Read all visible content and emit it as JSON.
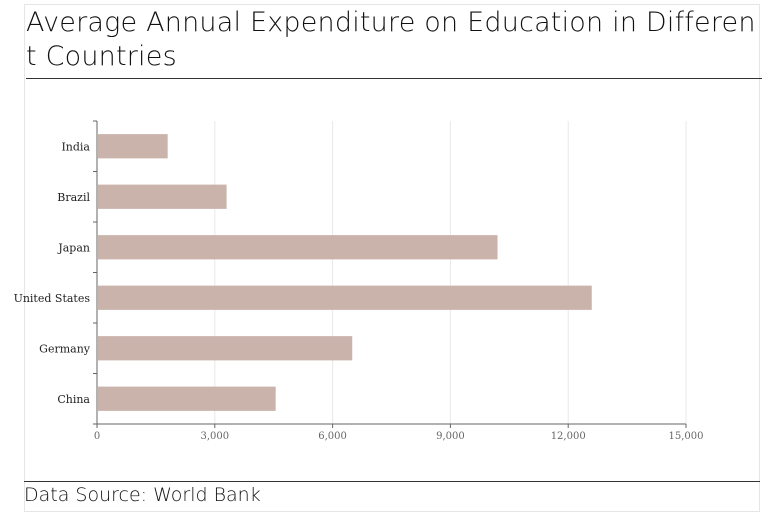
{
  "title": "Average Annual Expenditure on Education in Different Countries",
  "source": "Data Source: World Bank",
  "chart_data": {
    "type": "bar",
    "orientation": "horizontal",
    "categories": [
      "India",
      "Brazil",
      "Japan",
      "United States",
      "Germany",
      "China"
    ],
    "values": [
      1800,
      3300,
      10200,
      12600,
      6500,
      4550
    ],
    "xlim": [
      0,
      15000
    ],
    "xticks": [
      0,
      3000,
      6000,
      9000,
      12000,
      15000
    ],
    "xtick_labels": [
      "0",
      "3,000",
      "6,000",
      "9,000",
      "12,000",
      "15,000"
    ],
    "xlabel": "",
    "ylabel": "",
    "grid": "vertical",
    "bar_color": "#c9b3ab",
    "legend": "none"
  }
}
